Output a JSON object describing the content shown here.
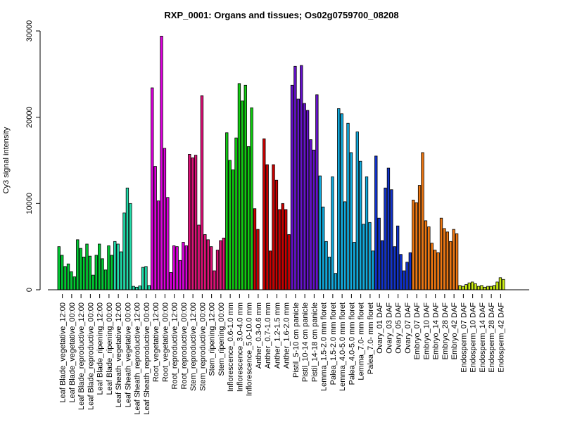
{
  "chart_data": {
    "type": "bar",
    "title": "RXP_0001: Organs and tissues; Os02g0759700_08208",
    "xlabel": "",
    "ylabel": "Cy3 signal intensity",
    "ylim": [
      0,
      30000
    ],
    "yticks": [
      0,
      10000,
      20000,
      30000
    ],
    "grid": false,
    "legend": "none",
    "groups": [
      {
        "label": "Leaf Blade_vegetative_12:00",
        "color": "#00cc33",
        "values": [
          5000,
          4000,
          2700
        ]
      },
      {
        "label": "Leaf Blade_vegetative_00:00",
        "color": "#00cc33",
        "values": [
          3000,
          2100,
          1500
        ]
      },
      {
        "label": "Leaf Blade_reproductive_12:00",
        "color": "#00cc33",
        "values": [
          5800,
          4800,
          3800
        ]
      },
      {
        "label": "Leaf Blade_reproductive_00:00",
        "color": "#00cc33",
        "values": [
          5300,
          3900,
          1700
        ]
      },
      {
        "label": "Leaf Blade_ripening_12:00",
        "color": "#00cc33",
        "values": [
          4000,
          5300,
          3600
        ]
      },
      {
        "label": "Leaf Blade_ripening_00:00",
        "color": "#00cc33",
        "values": [
          2300,
          5100,
          4000
        ]
      },
      {
        "label": "Leaf Sheath_vegetative_12:00",
        "color": "#22ddaa",
        "values": [
          5600,
          5300,
          4400
        ]
      },
      {
        "label": "Leaf Sheath_vegetative_00:00",
        "color": "#22ddaa",
        "values": [
          8900,
          11800,
          10000
        ]
      },
      {
        "label": "Leaf Sheath_reproductive_12:00",
        "color": "#22ddaa",
        "values": [
          400,
          300,
          450
        ]
      },
      {
        "label": "Leaf Sheath_reproductive_00:00",
        "color": "#22ddaa",
        "values": [
          2600,
          2700,
          500
        ]
      },
      {
        "label": "Root_vegetative_12:00",
        "color": "#dd00dd",
        "values": [
          23400,
          14300,
          10300
        ]
      },
      {
        "label": "Root_vegetative_00:00",
        "color": "#dd00dd",
        "values": [
          29400,
          16400,
          10700
        ]
      },
      {
        "label": "Root_reproductive_12:00",
        "color": "#dd00dd",
        "values": [
          2000,
          5100,
          5000
        ]
      },
      {
        "label": "Root_reproductive_00:00",
        "color": "#dd00dd",
        "values": [
          3400,
          5500,
          5100
        ]
      },
      {
        "label": "Stem_reproductive_12:00",
        "color": "#dd1177",
        "values": [
          15700,
          15300,
          15600
        ]
      },
      {
        "label": "Stem_reproductive_00:00",
        "color": "#dd1177",
        "values": [
          7500,
          22500,
          6400
        ]
      },
      {
        "label": "Stem_ripening_12:00",
        "color": "#dd1177",
        "values": [
          5800,
          5000,
          2200
        ]
      },
      {
        "label": "Stem_ripening_00:00",
        "color": "#dd1177",
        "values": [
          4600,
          5700,
          6000
        ]
      },
      {
        "label": "Inflorescence_0.6-1.0 mm",
        "color": "#11cc11",
        "values": [
          18200,
          15000,
          13900
        ]
      },
      {
        "label": "Inflorescence_3.0-4.0 mm",
        "color": "#11cc11",
        "values": [
          17600,
          23900,
          21900
        ]
      },
      {
        "label": "Inflorescence_5.0-10.0 mm",
        "color": "#11cc11",
        "values": [
          23700,
          16600,
          21100
        ]
      },
      {
        "label": "Anther_0.3-0.6 mm",
        "color": "#cc0000",
        "values": [
          9400,
          7000
        ]
      },
      {
        "label": "Anther_0.7-1.0 mm",
        "color": "#cc0000",
        "values": [
          17500,
          14500,
          4500
        ]
      },
      {
        "label": "Anther_1.2-1.5 mm",
        "color": "#cc0000",
        "values": [
          14500,
          12700,
          9300
        ]
      },
      {
        "label": "Anther_1.6-2.0 mm",
        "color": "#cc0000",
        "values": [
          10000,
          9300,
          6400
        ]
      },
      {
        "label": "Pistil_5-10 cm panicle",
        "color": "#6611cc",
        "values": [
          23700,
          25900,
          22100
        ]
      },
      {
        "label": "Pistil_10-14 cm panicle",
        "color": "#6611cc",
        "values": [
          26000,
          21600,
          20800
        ]
      },
      {
        "label": "Pistil_14-18 cm panicle",
        "color": "#6611cc",
        "values": [
          17400,
          16200,
          22600
        ]
      },
      {
        "label": "Lemma_1.5-2.0 mm floret",
        "color": "#11aadd",
        "values": [
          13200,
          9600,
          5600
        ]
      },
      {
        "label": "Palea_1.5-2.0 mm floret",
        "color": "#11aadd",
        "values": [
          3800,
          13100,
          1900
        ]
      },
      {
        "label": "Lemma_4.0-5.0 mm floret",
        "color": "#11aadd",
        "values": [
          21000,
          20400,
          10200
        ]
      },
      {
        "label": "Palea_4.0-5.0 mm floret",
        "color": "#11aadd",
        "values": [
          19300,
          15900,
          5500
        ]
      },
      {
        "label": "Lemma_7.0- mm floret",
        "color": "#11aadd",
        "values": [
          18300,
          14900,
          7600
        ]
      },
      {
        "label": "Palea_7.0- mm floret",
        "color": "#11aadd",
        "values": [
          13100,
          7800,
          4500
        ]
      },
      {
        "label": "Ovary_01 DAF",
        "color": "#1133cc",
        "values": [
          15500,
          8300,
          5700
        ]
      },
      {
        "label": "Ovary_03 DAF",
        "color": "#1133cc",
        "values": [
          11800,
          14100,
          11600
        ]
      },
      {
        "label": "Ovary_05 DAF",
        "color": "#1133cc",
        "values": [
          5000,
          7400,
          4100
        ]
      },
      {
        "label": "Ovary_07 DAF",
        "color": "#1133cc",
        "values": [
          2200,
          3200,
          4300
        ]
      },
      {
        "label": "Embryo_07 DAF",
        "color": "#ee7711",
        "values": [
          10400,
          10100,
          12100
        ]
      },
      {
        "label": "Embryo_10 DAF",
        "color": "#ee7711",
        "values": [
          15900,
          8000,
          7300
        ]
      },
      {
        "label": "Embryo_14 DAF",
        "color": "#ee7711",
        "values": [
          5400,
          4600,
          4300
        ]
      },
      {
        "label": "Embryo_28 DAF",
        "color": "#ee7711",
        "values": [
          8300,
          7100,
          6700
        ]
      },
      {
        "label": "Embryo_42 DAF",
        "color": "#ee7711",
        "values": [
          5600,
          7000,
          6500
        ]
      },
      {
        "label": "Endosperm_07 DAF",
        "color": "#ccee11",
        "values": [
          500,
          400,
          600
        ]
      },
      {
        "label": "Endosperm_10 DAF",
        "color": "#ccee11",
        "values": [
          800,
          900,
          700
        ]
      },
      {
        "label": "Endosperm_14 DAF",
        "color": "#ccee11",
        "values": [
          400,
          500,
          300
        ]
      },
      {
        "label": "Endosperm_28 DAF",
        "color": "#ccee11",
        "values": [
          400,
          400,
          500
        ]
      },
      {
        "label": "Endosperm_42 DAF",
        "color": "#ccee11",
        "values": [
          900,
          1400,
          1200
        ]
      }
    ]
  }
}
